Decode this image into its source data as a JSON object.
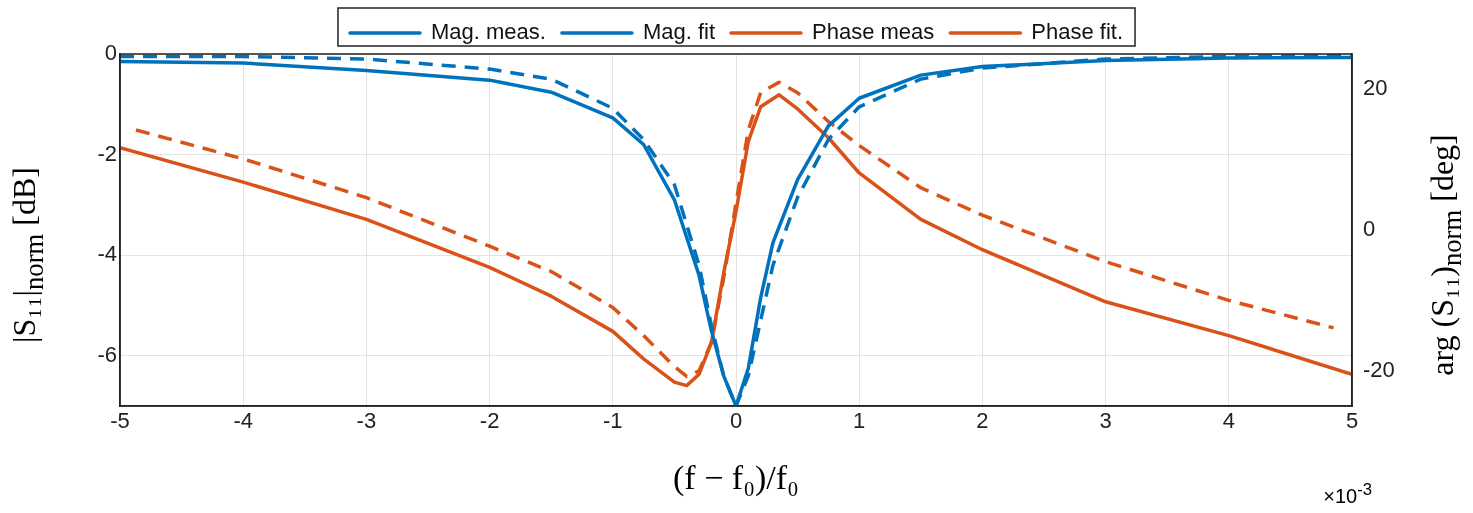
{
  "chart_data": {
    "type": "line",
    "xlabel": "(f − f₀)/f₀",
    "ylabel": "|S₁₁|$_{norm}$ [dB]",
    "y2label": "arg (S₁₁)$_{norm}$ [deg]",
    "annotations": [
      "×10$^{-3}$"
    ],
    "xlim": [
      -5,
      5
    ],
    "xticks": [
      -5,
      -4,
      -3,
      -2,
      -1,
      0,
      1,
      2,
      3,
      4,
      5
    ],
    "ylim": [
      -7,
      0
    ],
    "yticks": [
      -6,
      -4,
      -2,
      0
    ],
    "y2lim": [
      -25,
      25
    ],
    "y2ticks": [
      -20,
      0,
      20
    ],
    "grid": true,
    "legend": "top",
    "marker": "none",
    "series": [
      {
        "name": "Mag. meas.",
        "color": "#0072bd",
        "line_style": "solid",
        "x": [
          -5,
          -4,
          -3,
          -2,
          -1.5,
          -1,
          -0.75,
          -0.5,
          -0.3,
          -0.2,
          -0.1,
          0,
          0.1,
          0.2,
          0.3,
          0.5,
          0.75,
          1,
          1.5,
          2,
          3,
          4,
          5
        ],
        "values": [
          -0.15,
          -0.18,
          -0.33,
          -0.52,
          -0.76,
          -1.27,
          -1.8,
          -2.9,
          -4.4,
          -5.5,
          -6.4,
          -7,
          -6.25,
          -4.85,
          -3.75,
          -2.5,
          -1.43,
          -0.88,
          -0.42,
          -0.25,
          -0.13,
          -0.08,
          -0.07
        ]
      },
      {
        "name": "Mag. fit",
        "color": "#0072bd",
        "line_style": "dashed",
        "x": [
          -5,
          -4,
          -3,
          -2,
          -1.5,
          -1,
          -0.75,
          -0.5,
          -0.3,
          -0.2,
          -0.1,
          0,
          0.1,
          0.2,
          0.3,
          0.5,
          0.75,
          1,
          1.5,
          2,
          3,
          4,
          5
        ],
        "values": [
          -0.05,
          -0.05,
          -0.1,
          -0.3,
          -0.5,
          -1.08,
          -1.7,
          -2.6,
          -4.2,
          -5.4,
          -6.4,
          -7,
          -6.4,
          -5.3,
          -4.2,
          -2.85,
          -1.7,
          -1.05,
          -0.5,
          -0.28,
          -0.1,
          -0.05,
          -0.03
        ]
      },
      {
        "name": "Phase meas",
        "color": "#d95319",
        "line_style": "solid",
        "axis": "y2",
        "x": [
          -5,
          -4,
          -3,
          -2,
          -1.5,
          -1,
          -0.75,
          -0.5,
          -0.4,
          -0.3,
          -0.2,
          -0.1,
          0,
          0.1,
          0.2,
          0.35,
          0.5,
          0.75,
          1,
          1.5,
          2,
          3,
          4,
          5
        ],
        "values": [
          11.7,
          6.8,
          1.5,
          -5.3,
          -9.4,
          -14.4,
          -18.3,
          -21.6,
          -22.1,
          -20.5,
          -16,
          -6.1,
          2.6,
          12.6,
          17.5,
          19.2,
          17.2,
          13.1,
          8.1,
          1.5,
          -2.8,
          -10.2,
          -15,
          -20.5
        ]
      },
      {
        "name": "Phase fit.",
        "color": "#d95319",
        "line_style": "dashed",
        "axis": "y2",
        "x": [
          -4.87,
          -4,
          -3,
          -2,
          -1.5,
          -1,
          -0.75,
          -0.5,
          -0.4,
          -0.3,
          -0.2,
          -0.1,
          0,
          0.1,
          0.2,
          0.35,
          0.5,
          0.75,
          1,
          1.5,
          2,
          3,
          4,
          4.85
        ],
        "values": [
          14.2,
          10.1,
          4.6,
          -2.3,
          -5.9,
          -11,
          -15,
          -19.4,
          -20.8,
          -20,
          -16,
          -6.8,
          3.8,
          14.2,
          19.5,
          21,
          19.5,
          15.4,
          12,
          6,
          2.1,
          -4.5,
          -10,
          -13.9
        ]
      }
    ]
  }
}
